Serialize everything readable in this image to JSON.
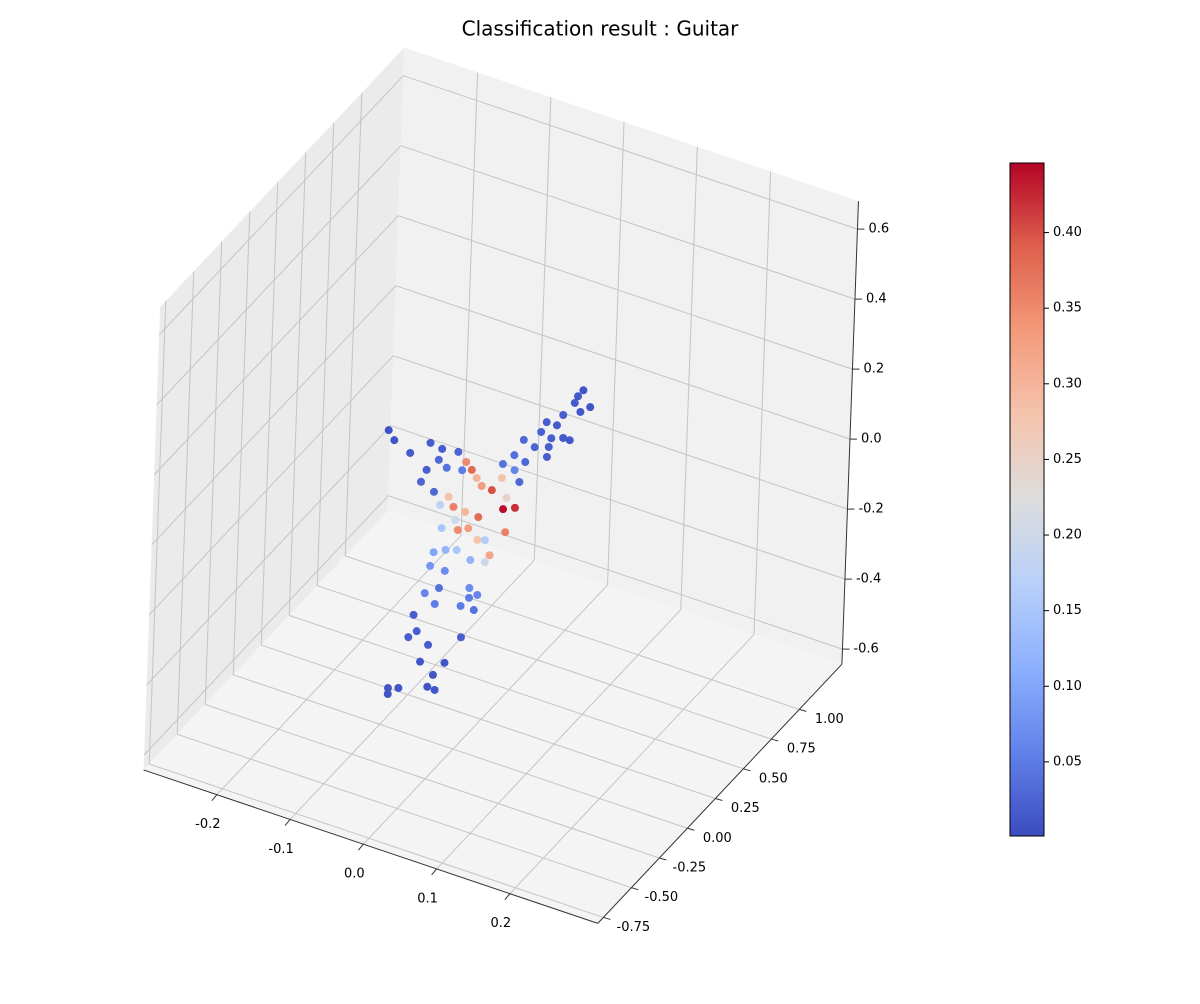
{
  "chart_data": {
    "type": "scatter3d",
    "title": "Classification result : Guitar",
    "x": [
      0.086,
      0.079,
      0.075,
      0.096,
      0.083,
      0.06,
      0.038,
      0.052,
      0.031,
      0.045,
      0.061,
      0.07,
      0.008,
      0.042,
      0.023,
      -0.004,
      0.011,
      0.04,
      -0.019,
      -0.003,
      0.004,
      -0.102,
      -0.094,
      -0.072,
      -0.045,
      -0.029,
      -0.007,
      -0.033,
      -0.049,
      -0.022,
      -0.056,
      -0.038,
      -0.001,
      0.004,
      0.012,
      0.019,
      0.026,
      0.04,
      0.053,
      0.06,
      0.072,
      0.056,
      -0.011,
      0.005,
      0.023,
      -0.008,
      -0.029,
      -0.018,
      0.01,
      -0.004,
      0.04,
      0.023,
      0.06,
      0.033,
      0.034,
      -0.026,
      0.008,
      0.024,
      0.039,
      0.004,
      0.024,
      0.058,
      0.058,
      0.069,
      0.058,
      0.065,
      0.047,
      -0.002,
      0.012,
      0.017,
      -0.016,
      -0.011,
      -0.022,
      0.005,
      0.049,
      -0.005,
      0.028,
      0.013,
      -0.047,
      -0.033,
      0.006,
      0.016,
      -0.047
    ],
    "y": [
      0.5,
      0.5,
      0.5,
      0.5,
      0.5,
      0.5,
      0.5,
      0.5,
      0.5,
      0.5,
      0.5,
      0.5,
      0.5,
      0.5,
      0.5,
      0.5,
      0.5,
      0.5,
      0.5,
      0.5,
      0.5,
      0,
      0,
      0,
      0,
      0,
      0,
      0,
      0,
      0,
      0,
      0,
      0,
      0,
      0,
      0,
      0,
      0,
      0,
      0,
      0,
      0,
      0,
      0,
      0,
      0,
      0,
      0,
      0,
      0,
      0,
      0,
      0,
      0,
      0,
      0,
      -0.3,
      -0.3,
      -0.3,
      -0.3,
      -0.3,
      -0.3,
      -0.3,
      -0.3,
      -0.3,
      -0.3,
      -0.3,
      -0.3,
      -0.3,
      -0.3,
      -0.3,
      -0.3,
      -0.3,
      -0.3,
      -0.3,
      -0.3,
      -0.3,
      -0.3,
      -0.3,
      -0.3,
      -0.3,
      -0.3,
      -0.3
    ],
    "z": [
      0.273,
      0.251,
      0.229,
      0.232,
      0.209,
      0.184,
      0.148,
      0.149,
      0.115,
      0.107,
      0.119,
      0.119,
      0.076,
      0.08,
      0.066,
      0.024,
      0.015,
      0.05,
      -0.012,
      -0.018,
      -0.047,
      0.196,
      0.173,
      0.152,
      0.2,
      0.194,
      0.201,
      0.16,
      0.12,
      0.145,
      0.081,
      0.065,
      0.153,
      0.18,
      0.163,
      0.145,
      0.127,
      0.125,
      0.169,
      0.117,
      0.097,
      0.082,
      0.041,
      0.038,
      0.036,
      0.006,
      0.034,
      0.065,
      -0.005,
      -0.02,
      -0.061,
      -0.029,
      0.019,
      -0.023,
      -0.085,
      -0.03,
      0.027,
      0.045,
      0.055,
      -0.015,
      -0.015,
      0.04,
      -0.04,
      -0.052,
      -0.068,
      -0.098,
      -0.099,
      -0.097,
      -0.118,
      -0.069,
      -0.169,
      -0.212,
      -0.237,
      -0.24,
      -0.187,
      -0.295,
      -0.275,
      -0.32,
      -0.4,
      -0.39,
      -0.359,
      -0.361,
      -0.417
    ],
    "values": [
      0.01,
      0.012,
      0.015,
      0.01,
      0.012,
      0.018,
      0.02,
      0.015,
      0.022,
      0.02,
      0.016,
      0.013,
      0.03,
      0.02,
      0.025,
      0.035,
      0.03,
      0.02,
      0.04,
      0.06,
      0.03,
      0.008,
      0.01,
      0.015,
      0.02,
      0.018,
      0.025,
      0.03,
      0.02,
      0.04,
      0.025,
      0.03,
      0.05,
      0.35,
      0.38,
      0.3,
      0.33,
      0.4,
      0.28,
      0.25,
      0.42,
      0.44,
      0.36,
      0.3,
      0.38,
      0.2,
      0.18,
      0.28,
      0.33,
      0.35,
      0.32,
      0.28,
      0.36,
      0.16,
      0.2,
      0.15,
      0.1,
      0.12,
      0.15,
      0.08,
      0.07,
      0.12,
      0.07,
      0.06,
      0.05,
      0.04,
      0.05,
      0.06,
      0.05,
      0.04,
      0.02,
      0.02,
      0.02,
      0.02,
      0.02,
      0.01,
      0.01,
      0.01,
      0.01,
      0.01,
      0.01,
      0.01,
      0.01
    ],
    "colormap": "coolwarm",
    "clim": [
      0.001,
      0.446
    ],
    "cticks": [
      0.05,
      {
        "value": 0.1,
        "label": "0.10"
      },
      0.15,
      {
        "value": 0.2,
        "label": "0.20"
      },
      0.25,
      {
        "value": 0.3,
        "label": "0.30"
      },
      0.35,
      {
        "value": 0.4,
        "label": "0.40"
      }
    ],
    "xlim": [
      -0.3,
      0.32
    ],
    "ylim": [
      -0.8,
      1.38
    ],
    "zlim": [
      -0.643,
      0.68
    ],
    "xticks": [
      -0.2,
      -0.1,
      {
        "value": 0,
        "label": "0.0"
      },
      0.1,
      0.2
    ],
    "yticks": [
      -0.75,
      {
        "value": -0.5,
        "label": "-0.50"
      },
      -0.25,
      {
        "value": 0,
        "label": "0.00"
      },
      0.25,
      {
        "value": 0.5,
        "label": "0.50"
      },
      0.75,
      {
        "value": 1,
        "label": "1.00"
      }
    ],
    "zticks": [
      -0.6,
      -0.4,
      -0.2,
      {
        "value": 0,
        "label": "0.0"
      },
      0.2,
      0.4,
      0.6
    ],
    "grid": true
  }
}
